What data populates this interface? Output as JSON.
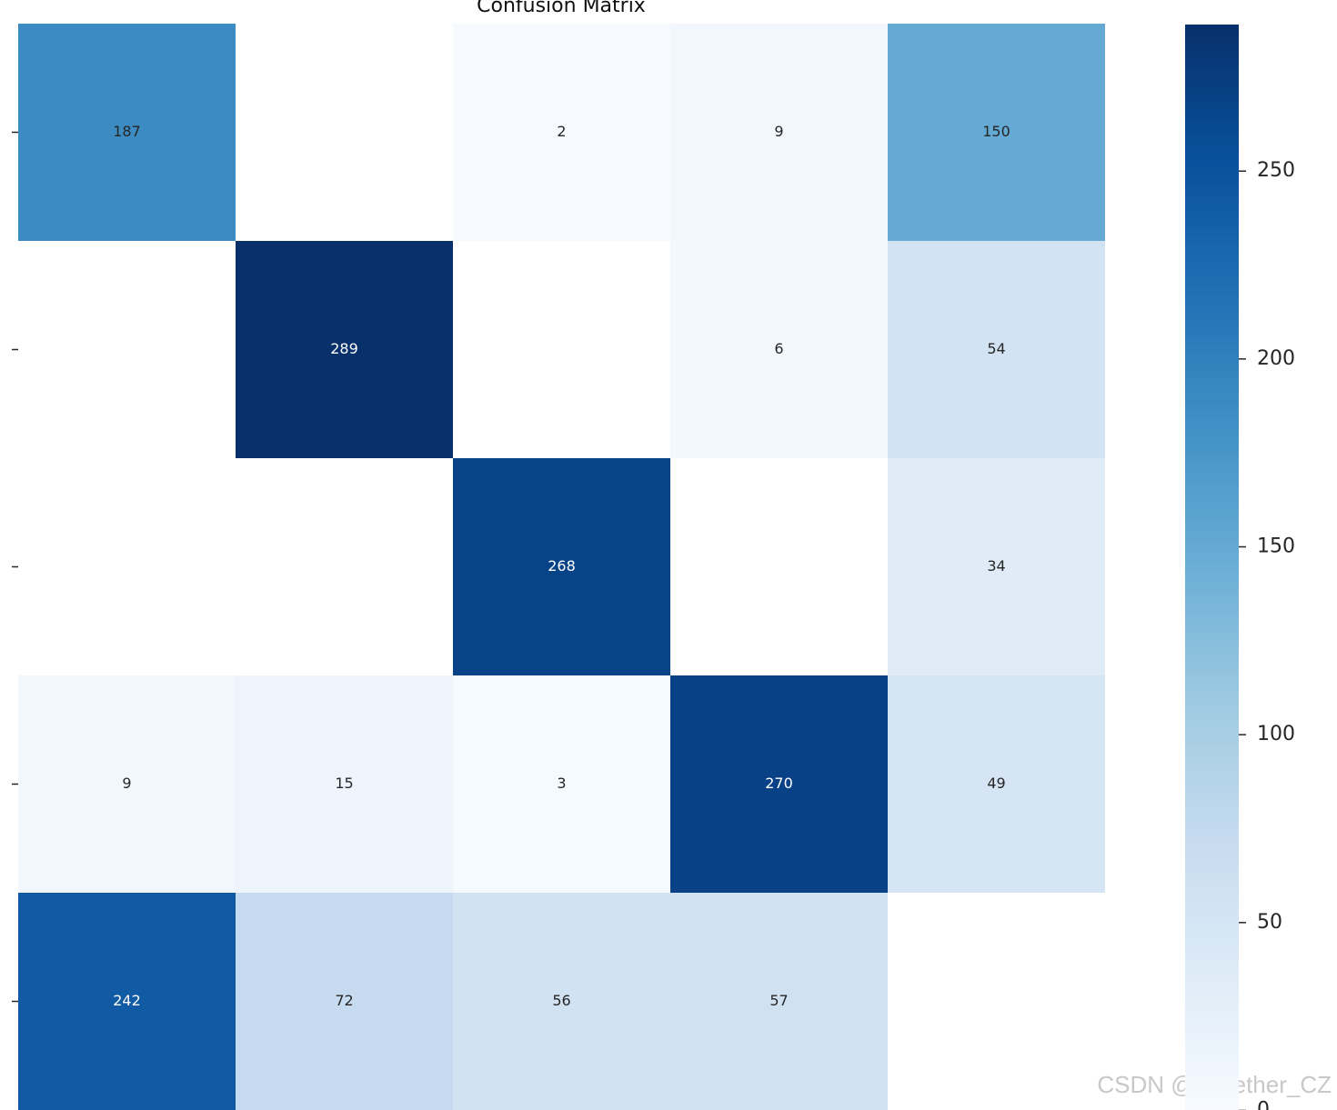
{
  "chart_data": {
    "type": "heatmap",
    "title": "Confusion Matrix",
    "y_categories": [
      null,
      null,
      null,
      null,
      null
    ],
    "values": [
      [
        187,
        null,
        2,
        9,
        150
      ],
      [
        null,
        289,
        null,
        6,
        54
      ],
      [
        null,
        null,
        268,
        null,
        34
      ],
      [
        9,
        15,
        3,
        270,
        49
      ],
      [
        242,
        72,
        56,
        57,
        null
      ]
    ],
    "colormap": "Blues",
    "clim": [
      0,
      289
    ],
    "cticks": [
      0,
      50,
      100,
      150,
      200,
      250
    ],
    "watermark": "CSDN @Together_CZ"
  }
}
